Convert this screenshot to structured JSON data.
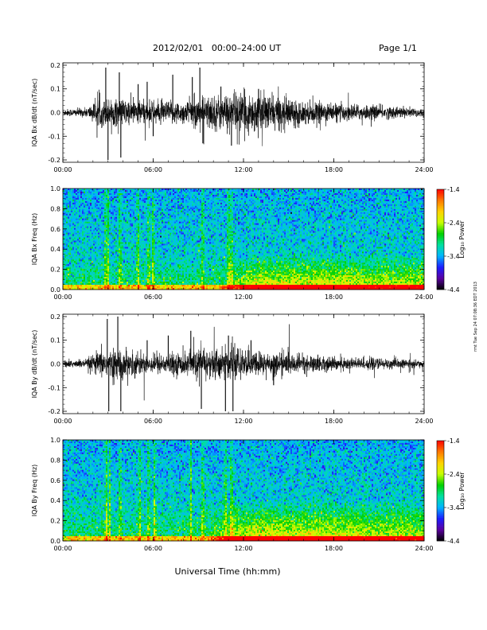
{
  "header": {
    "date_range": "2012/02/01   00:00–24:00 UT",
    "page": "Page 1/1"
  },
  "side_stamp": "rmt Tue Sep 24 07:08:36 EDT 2013",
  "x_axis": {
    "label": "Universal Time (hh:mm)",
    "ticks": [
      "00:00",
      "06:00",
      "12:00",
      "18:00",
      "24:00"
    ],
    "range_hours": [
      0,
      24
    ]
  },
  "colorbar": {
    "label": "Log₁₀ Power",
    "ticks": [
      "-1.4",
      "-2.4",
      "-3.4",
      "-4.4"
    ],
    "range": [
      -4.4,
      -1.4
    ],
    "colors": [
      "#000000",
      "#5a00a0",
      "#1c1cff",
      "#00b4ff",
      "#00e0a0",
      "#00d000",
      "#c8ff00",
      "#ffd200",
      "#ff7800",
      "#ff0000"
    ]
  },
  "chart_data": [
    {
      "type": "line",
      "panel": "IQA Bx dB/dt",
      "ylabel": "IQA Bx dB/dt (nT/sec)",
      "ylim": [
        -0.21,
        0.21
      ],
      "yticks": [
        "0.2",
        "0.1",
        "0.0",
        "-0.1",
        "-0.2"
      ],
      "color": "#000000",
      "noise_envelope": [
        {
          "t": 0,
          "amp": 0.015
        },
        {
          "t": 1.5,
          "amp": 0.02
        },
        {
          "t": 2.5,
          "amp": 0.06
        },
        {
          "t": 4,
          "amp": 0.06
        },
        {
          "t": 6,
          "amp": 0.05
        },
        {
          "t": 8,
          "amp": 0.05
        },
        {
          "t": 10,
          "amp": 0.08
        },
        {
          "t": 12,
          "amp": 0.09
        },
        {
          "t": 14,
          "amp": 0.08
        },
        {
          "t": 16,
          "amp": 0.05
        },
        {
          "t": 18,
          "amp": 0.04
        },
        {
          "t": 21,
          "amp": 0.03
        },
        {
          "t": 24,
          "amp": 0.02
        }
      ],
      "spikes": [
        {
          "t": 2.85,
          "value": 0.19
        },
        {
          "t": 3.0,
          "value": -0.2
        },
        {
          "t": 3.75,
          "value": 0.17
        },
        {
          "t": 3.85,
          "value": -0.19
        },
        {
          "t": 5.0,
          "value": 0.12
        },
        {
          "t": 5.6,
          "value": 0.13
        },
        {
          "t": 6.0,
          "value": -0.1
        },
        {
          "t": 7.3,
          "value": 0.16
        },
        {
          "t": 8.6,
          "value": 0.15
        },
        {
          "t": 9.1,
          "value": 0.19
        },
        {
          "t": 9.3,
          "value": -0.13
        },
        {
          "t": 10.5,
          "value": 0.11
        },
        {
          "t": 11.2,
          "value": -0.14
        },
        {
          "t": 13.0,
          "value": 0.1
        }
      ]
    },
    {
      "type": "heatmap",
      "panel": "IQA Bx Freq",
      "ylabel": "IQA Bx Freq (Hz)",
      "ylim": [
        0.0,
        1.0
      ],
      "yticks": [
        "1.0",
        "0.8",
        "0.6",
        "0.4",
        "0.2",
        "0.0"
      ],
      "vertical_bursts_hours": [
        2.85,
        3.0,
        3.8,
        5.0,
        5.7,
        6.0,
        9.3,
        11.0,
        11.2
      ],
      "low_freq_enhancement": {
        "from_hours": 10,
        "to_hours": 24,
        "max_freq_hz": 0.35
      }
    },
    {
      "type": "line",
      "panel": "IQA By dB/dt",
      "ylabel": "IQA By dB/dt (nT/sec)",
      "ylim": [
        -0.21,
        0.21
      ],
      "yticks": [
        "0.2",
        "0.1",
        "0.0",
        "-0.1",
        "-0.2"
      ],
      "color": "#000000",
      "noise_envelope": [
        {
          "t": 0,
          "amp": 0.015
        },
        {
          "t": 1.5,
          "amp": 0.02
        },
        {
          "t": 2.5,
          "amp": 0.06
        },
        {
          "t": 4,
          "amp": 0.06
        },
        {
          "t": 6,
          "amp": 0.04
        },
        {
          "t": 8,
          "amp": 0.05
        },
        {
          "t": 10,
          "amp": 0.07
        },
        {
          "t": 12,
          "amp": 0.06
        },
        {
          "t": 14,
          "amp": 0.05
        },
        {
          "t": 16,
          "amp": 0.04
        },
        {
          "t": 18,
          "amp": 0.03
        },
        {
          "t": 21,
          "amp": 0.025
        },
        {
          "t": 24,
          "amp": 0.015
        }
      ],
      "spikes": [
        {
          "t": 2.95,
          "value": 0.19
        },
        {
          "t": 3.05,
          "value": -0.2
        },
        {
          "t": 3.65,
          "value": 0.2
        },
        {
          "t": 3.85,
          "value": -0.2
        },
        {
          "t": 5.6,
          "value": 0.1
        },
        {
          "t": 7.0,
          "value": 0.12
        },
        {
          "t": 8.5,
          "value": 0.14
        },
        {
          "t": 9.2,
          "value": -0.19
        },
        {
          "t": 10.8,
          "value": -0.2
        },
        {
          "t": 11.0,
          "value": 0.12
        },
        {
          "t": 11.3,
          "value": -0.2
        },
        {
          "t": 12.5,
          "value": 0.1
        },
        {
          "t": 14.0,
          "value": -0.09
        }
      ]
    },
    {
      "type": "heatmap",
      "panel": "IQA By Freq",
      "ylabel": "IQA By Freq (Hz)",
      "ylim": [
        0.0,
        1.0
      ],
      "yticks": [
        "1.0",
        "0.8",
        "0.6",
        "0.4",
        "0.2",
        "0.0"
      ],
      "vertical_bursts_hours": [
        2.9,
        3.1,
        3.8,
        5.1,
        5.7,
        6.1,
        8.5,
        9.3,
        10.8,
        11.2
      ],
      "low_freq_enhancement": {
        "from_hours": 9,
        "to_hours": 24,
        "max_freq_hz": 0.4
      }
    }
  ]
}
